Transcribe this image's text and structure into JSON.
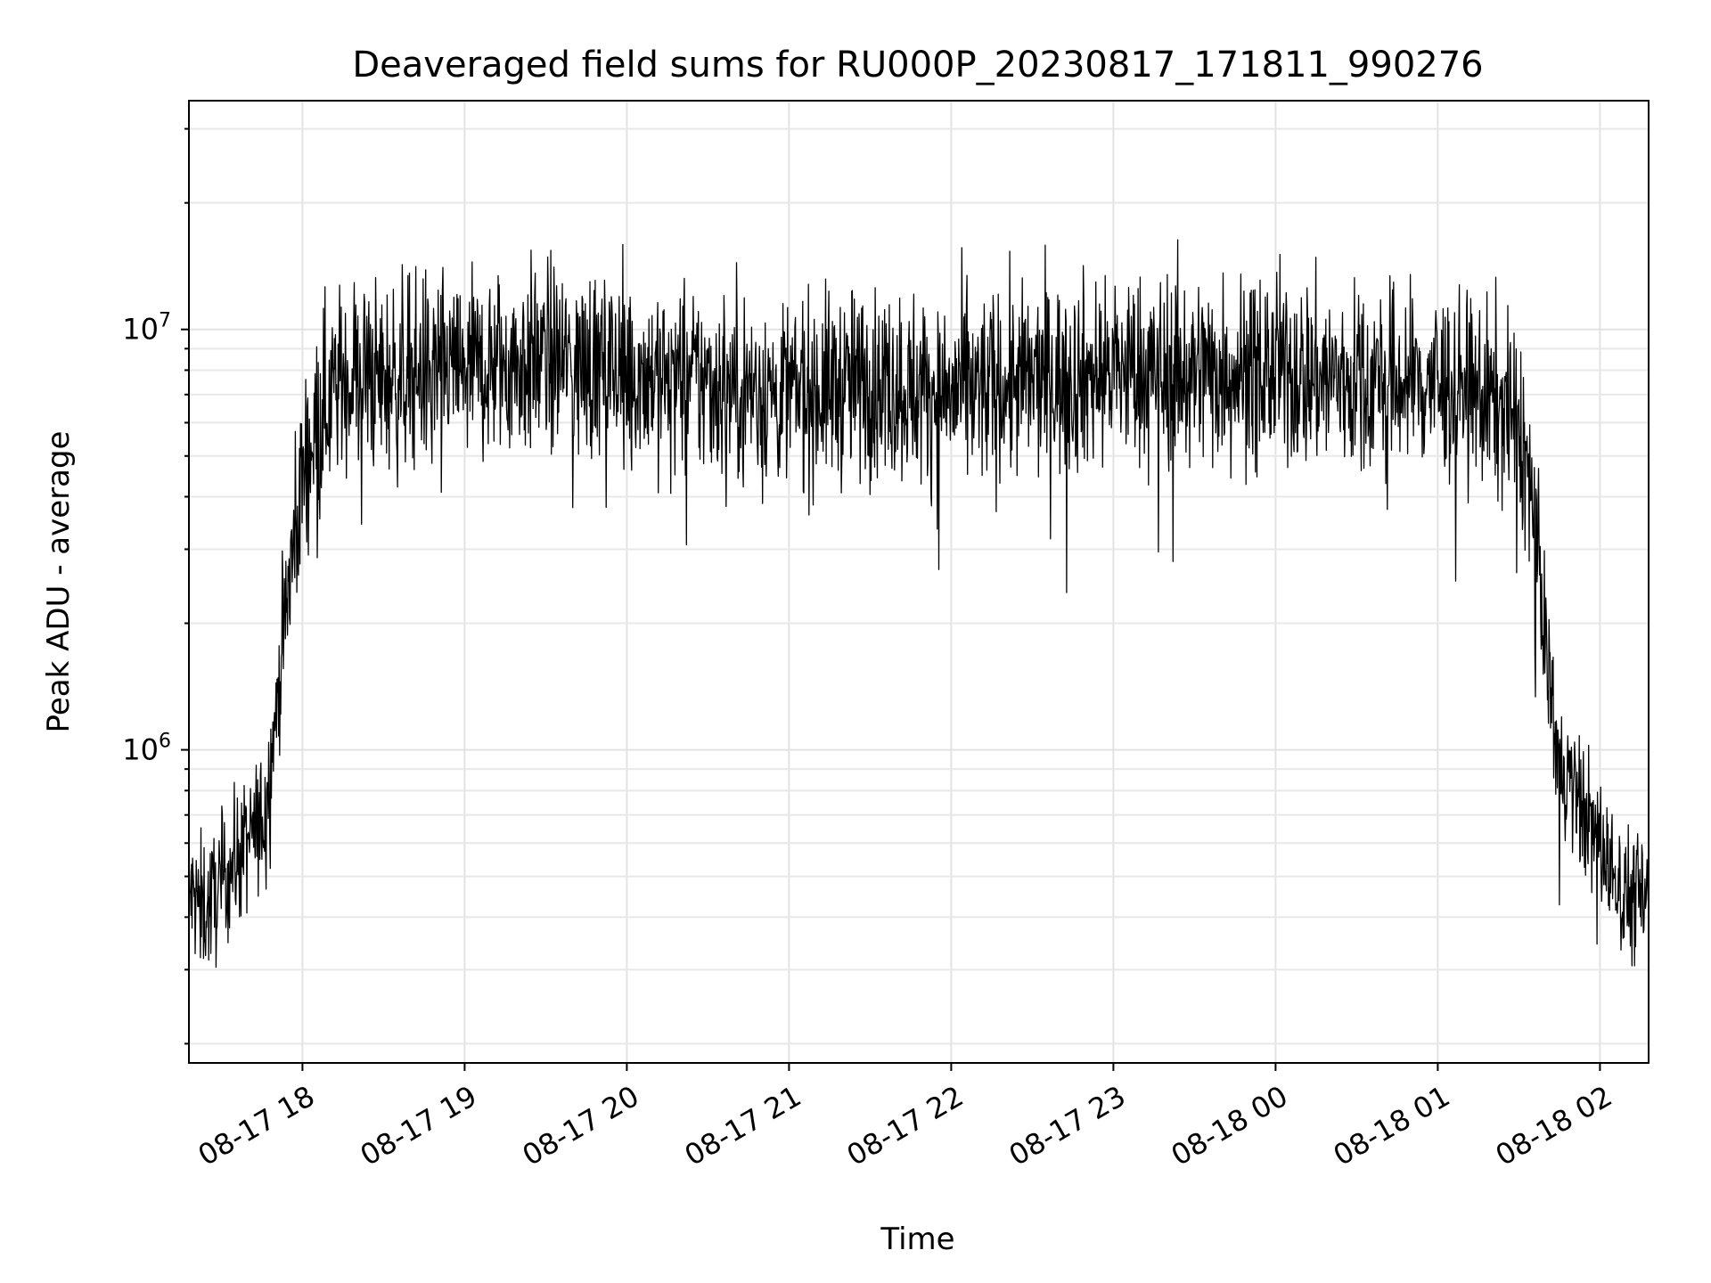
{
  "chart_data": {
    "type": "line",
    "title": "Deaveraged field sums for RU000P_20230817_171811_990276",
    "xlabel": "Time",
    "ylabel": "Peak ADU - average",
    "x_range": [
      "2023-08-17 17:18",
      "2023-08-18 02:18"
    ],
    "yscale": "log",
    "ylim": [
      180000,
      35000000
    ],
    "grid": true,
    "line_color": "#000000",
    "x_ticks": [
      {
        "time": "2023-08-17 18:00",
        "label": "08-17 18"
      },
      {
        "time": "2023-08-17 19:00",
        "label": "08-17 19"
      },
      {
        "time": "2023-08-17 20:00",
        "label": "08-17 20"
      },
      {
        "time": "2023-08-17 21:00",
        "label": "08-17 21"
      },
      {
        "time": "2023-08-17 22:00",
        "label": "08-17 22"
      },
      {
        "time": "2023-08-17 23:00",
        "label": "08-17 23"
      },
      {
        "time": "2023-08-18 00:00",
        "label": "08-18 00"
      },
      {
        "time": "2023-08-18 01:00",
        "label": "08-18 01"
      },
      {
        "time": "2023-08-18 02:00",
        "label": "08-18 02"
      }
    ],
    "y_ticks": [
      {
        "value": 1000000,
        "base": "10",
        "exp": "6"
      },
      {
        "value": 10000000,
        "base": "10",
        "exp": "7"
      }
    ],
    "series": [
      {
        "x": [
          "2023-08-17 17:18",
          "2023-08-17 17:25",
          "2023-08-17 17:33",
          "2023-08-17 17:40",
          "2023-08-17 17:46",
          "2023-08-17 17:50",
          "2023-08-17 17:55",
          "2023-08-17 18:00",
          "2023-08-17 18:05",
          "2023-08-17 18:10",
          "2023-08-17 18:15",
          "2023-08-17 18:20",
          "2023-08-17 18:30",
          "2023-08-17 18:45",
          "2023-08-17 19:00",
          "2023-08-17 19:30",
          "2023-08-17 20:00",
          "2023-08-17 20:30",
          "2023-08-17 21:00",
          "2023-08-17 21:30",
          "2023-08-17 22:00",
          "2023-08-17 22:30",
          "2023-08-17 23:00",
          "2023-08-17 23:30",
          "2023-08-18 00:00",
          "2023-08-18 00:30",
          "2023-08-18 01:00",
          "2023-08-18 01:15",
          "2023-08-18 01:25",
          "2023-08-18 01:30",
          "2023-08-18 01:35",
          "2023-08-18 01:40",
          "2023-08-18 01:45",
          "2023-08-18 01:50",
          "2023-08-18 01:55",
          "2023-08-18 02:00",
          "2023-08-18 02:05",
          "2023-08-18 02:10",
          "2023-08-18 02:18"
        ],
        "y": [
          450000,
          420000,
          520000,
          600000,
          700000,
          1200000,
          2500000,
          4500000,
          6000000,
          7000000,
          7500000,
          8000000,
          7500000,
          8000000,
          8000000,
          8500000,
          8000000,
          7500000,
          7000000,
          7500000,
          7000000,
          7500000,
          8000000,
          8000000,
          8000000,
          7500000,
          7500000,
          7000000,
          6500000,
          6000000,
          4000000,
          1800000,
          900000,
          800000,
          700000,
          600000,
          500000,
          450000,
          450000
        ]
      }
    ]
  }
}
